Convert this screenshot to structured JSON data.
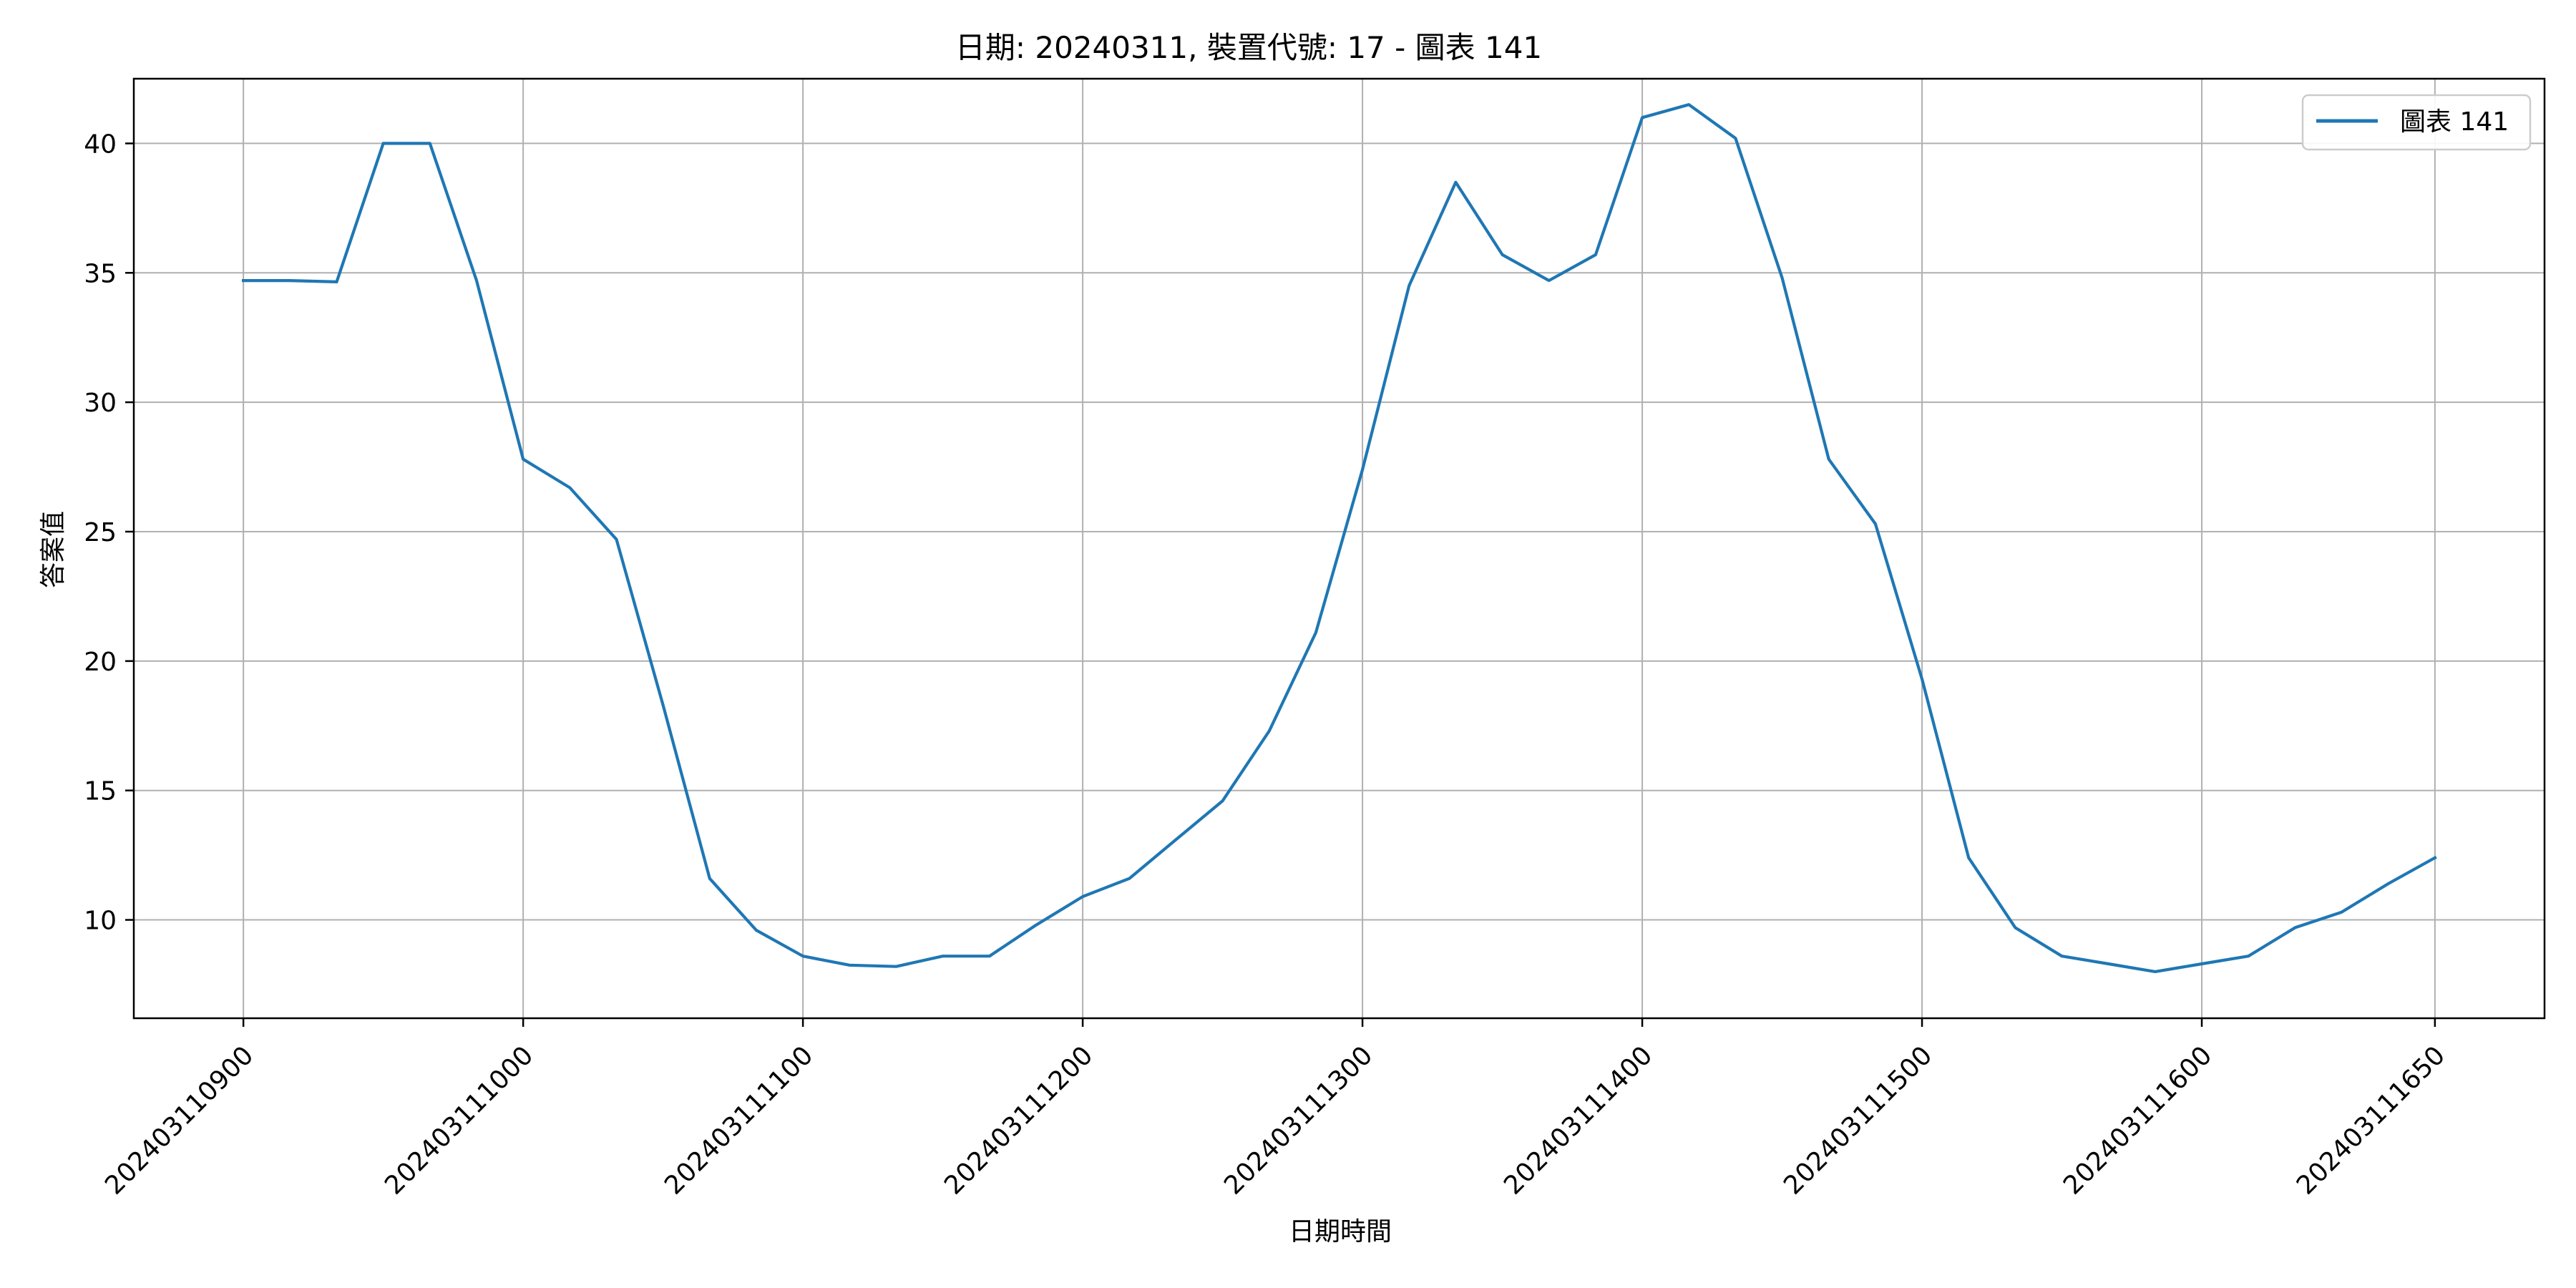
{
  "chart_data": {
    "type": "line",
    "title": "日期: 20240311, 裝置代號: 17 - 圖表 141",
    "xlabel": "日期時間",
    "ylabel": "答案值",
    "x_ticks": [
      {
        "label": "202403110900",
        "x": 0
      },
      {
        "label": "202403111000",
        "x": 60
      },
      {
        "label": "202403111100",
        "x": 120
      },
      {
        "label": "202403111200",
        "x": 180
      },
      {
        "label": "202403111300",
        "x": 240
      },
      {
        "label": "202403111400",
        "x": 300
      },
      {
        "label": "202403111500",
        "x": 360
      },
      {
        "label": "202403111600",
        "x": 420
      },
      {
        "label": "202403111650",
        "x": 470
      }
    ],
    "y_ticks": [
      10,
      15,
      20,
      25,
      30,
      35,
      40
    ],
    "xlim": [
      -23.5,
      493.5
    ],
    "ylim": [
      6.2,
      42.5
    ],
    "grid": true,
    "legend": "top-right",
    "series": [
      {
        "name": "圖表 141",
        "color": "#1f77b4",
        "x": [
          0,
          10,
          20,
          30,
          40,
          50,
          60,
          70,
          80,
          90,
          100,
          110,
          120,
          130,
          140,
          150,
          160,
          170,
          180,
          190,
          200,
          210,
          220,
          230,
          240,
          250,
          260,
          270,
          280,
          290,
          300,
          310,
          320,
          330,
          340,
          350,
          360,
          370,
          380,
          390,
          400,
          410,
          420,
          430,
          440,
          450,
          460,
          470
        ],
        "values": [
          34.7,
          34.7,
          34.65,
          40.0,
          40.0,
          34.7,
          27.8,
          26.7,
          24.7,
          18.3,
          11.6,
          9.6,
          8.6,
          8.25,
          8.2,
          8.6,
          8.6,
          9.8,
          10.9,
          11.6,
          13.1,
          14.6,
          17.3,
          21.1,
          27.4,
          34.5,
          38.5,
          35.7,
          34.7,
          35.7,
          41.0,
          41.5,
          40.2,
          34.8,
          27.8,
          25.3,
          19.3,
          12.4,
          9.7,
          8.6,
          8.3,
          8.0,
          8.3,
          8.6,
          9.7,
          10.3,
          11.4,
          12.4
        ]
      }
    ]
  }
}
